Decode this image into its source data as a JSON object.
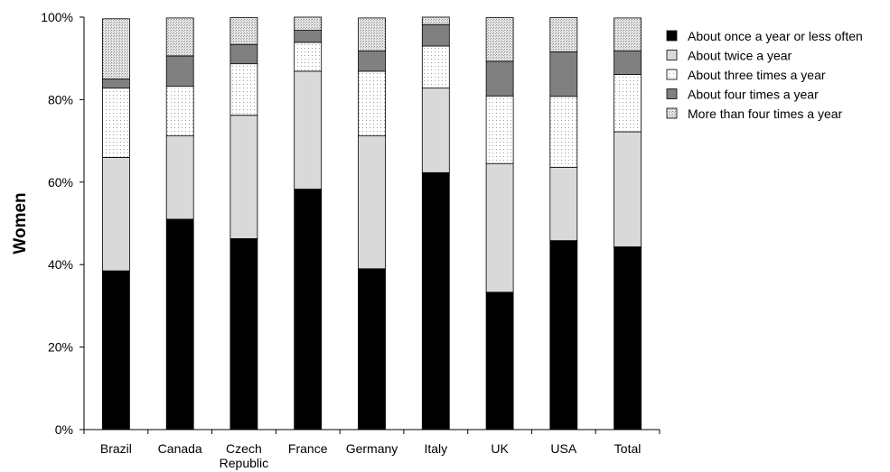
{
  "chart_data": {
    "type": "bar",
    "stacked": true,
    "ylabel": "Women",
    "xlabel": "",
    "ylim": [
      0,
      100
    ],
    "yticks": [
      "0%",
      "20%",
      "40%",
      "60%",
      "80%",
      "100%"
    ],
    "categories": [
      [
        "Brazil"
      ],
      [
        "Canada"
      ],
      [
        "Czech",
        "Republic"
      ],
      [
        "France"
      ],
      [
        "Germany"
      ],
      [
        "Italy"
      ],
      [
        "UK"
      ],
      [
        "USA"
      ],
      [
        "Total"
      ]
    ],
    "legend_position": "top-right",
    "grid": false,
    "series": [
      {
        "name": "About once a year or less often",
        "color": "#000000",
        "fill": "solid-black",
        "values": [
          38.5,
          51,
          46.3,
          58.3,
          39,
          62.3,
          33.3,
          45.8,
          44.3
        ]
      },
      {
        "name": "About twice a year",
        "color": "#d9d9d9",
        "fill": "solid-light-gray",
        "values": [
          27.5,
          20.2,
          29.9,
          28.6,
          32.2,
          20.5,
          31.2,
          17.8,
          27.9
        ]
      },
      {
        "name": "About three times a year",
        "color": "#ffffff",
        "fill": "sparse-dots",
        "values": [
          16.8,
          12.1,
          12.5,
          7,
          15.7,
          10.2,
          16.4,
          17.2,
          13.9
        ]
      },
      {
        "name": "About four times a year",
        "color": "#808080",
        "fill": "solid-dark-gray",
        "values": [
          2.2,
          7.3,
          4.7,
          2.9,
          4.9,
          5.2,
          8.4,
          10.8,
          5.7
        ]
      },
      {
        "name": "More than four times a year",
        "color": "#c8c8c8",
        "fill": "dense-dots",
        "values": [
          14.6,
          9.2,
          6.5,
          3.2,
          8,
          1.8,
          10.6,
          8.3,
          8
        ]
      }
    ]
  }
}
